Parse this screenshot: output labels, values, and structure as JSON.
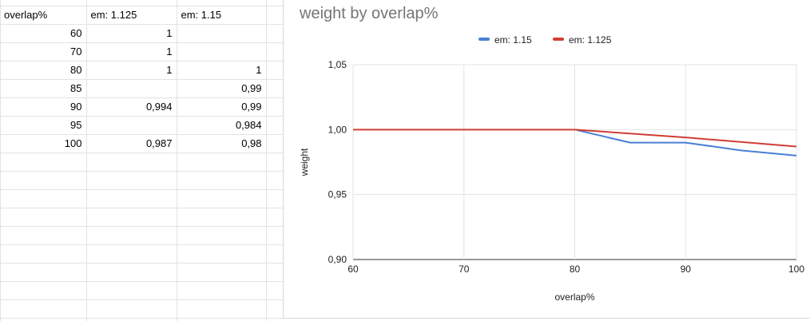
{
  "sheet": {
    "header": [
      "overlap%",
      "em: 1.125",
      "em: 1.15"
    ],
    "rows": [
      [
        "60",
        "1",
        ""
      ],
      [
        "70",
        "1",
        ""
      ],
      [
        "80",
        "1",
        "1"
      ],
      [
        "85",
        "",
        "0,99"
      ],
      [
        "90",
        "0,994",
        "0,99"
      ],
      [
        "95",
        "",
        "0,984"
      ],
      [
        "100",
        "0,987",
        "0,98"
      ]
    ]
  },
  "colors": {
    "em_1_15": "#4a7fd6",
    "em_1_125": "#d13d35",
    "grid": "#e2e3e3",
    "axis_text": "#222222"
  },
  "chart_data": {
    "type": "line",
    "title": "weight by overlap%",
    "xlabel": "overlap%",
    "ylabel": "weight",
    "xlim": [
      60,
      100
    ],
    "ylim": [
      0.9,
      1.05
    ],
    "x_ticks": [
      60,
      70,
      80,
      90,
      100
    ],
    "y_ticks": [
      0.9,
      0.95,
      1.0,
      1.05
    ],
    "y_tick_labels": [
      "0,90",
      "0,95",
      "1,00",
      "1,05"
    ],
    "grid": true,
    "legend_position": "top",
    "series": [
      {
        "name": "em: 1.15",
        "color": "#4a7fd6",
        "x": [
          80,
          85,
          90,
          95,
          100
        ],
        "y": [
          1.0,
          0.99,
          0.99,
          0.984,
          0.98
        ]
      },
      {
        "name": "em: 1.125",
        "color": "#d13d35",
        "x": [
          60,
          70,
          80,
          90,
          100
        ],
        "y": [
          1.0,
          1.0,
          1.0,
          0.994,
          0.987
        ]
      }
    ]
  }
}
